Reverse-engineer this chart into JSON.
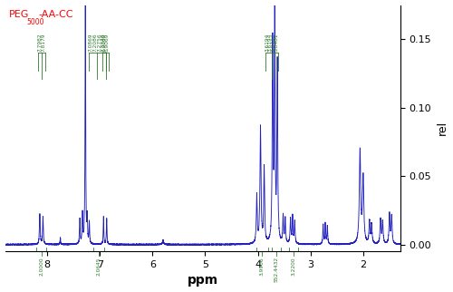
{
  "title_parts": [
    "PEG",
    "5000",
    "-AA-CC"
  ],
  "title_color": "#ff0000",
  "xlabel": "ppm",
  "ylabel": "rel",
  "xlim": [
    8.8,
    1.3
  ],
  "ylim": [
    -0.005,
    0.175
  ],
  "yticks": [
    0.0,
    0.05,
    0.1,
    0.15
  ],
  "xticks": [
    8,
    7,
    6,
    5,
    4,
    3,
    2
  ],
  "background_color": "#ffffff",
  "line_color": "#2222bb",
  "annotation_color": "#2d7a2d",
  "figsize": [
    5.0,
    3.22
  ],
  "dpi": 100
}
